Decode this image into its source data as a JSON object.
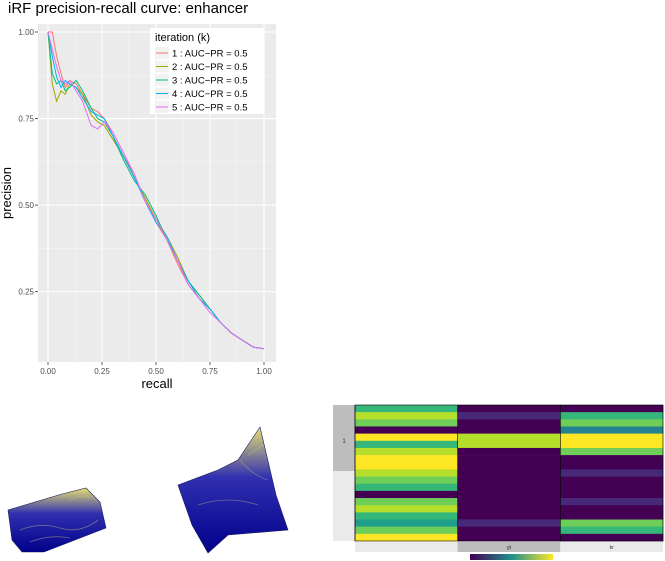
{
  "chart_data": [
    {
      "type": "line",
      "title": "iRF precision-recall curve: enhancer",
      "xlabel": "recall",
      "ylabel": "precision",
      "xlim": [
        0,
        1
      ],
      "ylim": [
        0.07,
        1.0
      ],
      "xticks": [
        "0.00",
        "0.25",
        "0.50",
        "0.75",
        "1.00"
      ],
      "yticks": [
        "0.25",
        "0.50",
        "0.75",
        "1.00"
      ],
      "grid": true,
      "legend": {
        "title": "iteration (k)",
        "position": "top-right"
      },
      "series": [
        {
          "name": "1 : AUC−PR =  0.5",
          "color": "#F8766D",
          "x": [
            0,
            0.02,
            0.04,
            0.06,
            0.08,
            0.1,
            0.13,
            0.16,
            0.2,
            0.23,
            0.26,
            0.3,
            0.35,
            0.4,
            0.45,
            0.5,
            0.55,
            0.6,
            0.65,
            0.7,
            0.75,
            0.8,
            0.85,
            0.9,
            0.95,
            1.0
          ],
          "y": [
            1.0,
            1.0,
            0.93,
            0.88,
            0.84,
            0.86,
            0.85,
            0.82,
            0.78,
            0.77,
            0.75,
            0.71,
            0.65,
            0.58,
            0.52,
            0.45,
            0.4,
            0.33,
            0.27,
            0.23,
            0.2,
            0.16,
            0.13,
            0.11,
            0.09,
            0.085
          ]
        },
        {
          "name": "2 : AUC−PR =  0.5",
          "color": "#A3A500",
          "x": [
            0,
            0.02,
            0.04,
            0.06,
            0.08,
            0.1,
            0.13,
            0.16,
            0.2,
            0.23,
            0.26,
            0.3,
            0.35,
            0.4,
            0.45,
            0.5,
            0.55,
            0.6,
            0.65,
            0.7,
            0.75,
            0.8,
            0.85,
            0.9,
            0.95,
            1.0
          ],
          "y": [
            1.0,
            0.85,
            0.8,
            0.83,
            0.82,
            0.85,
            0.84,
            0.82,
            0.76,
            0.74,
            0.73,
            0.69,
            0.64,
            0.58,
            0.52,
            0.46,
            0.41,
            0.35,
            0.28,
            0.24,
            0.2,
            0.16,
            0.13,
            0.11,
            0.09,
            0.085
          ]
        },
        {
          "name": "3 : AUC−PR =  0.5",
          "color": "#00BF7D",
          "x": [
            0,
            0.02,
            0.04,
            0.06,
            0.08,
            0.1,
            0.13,
            0.16,
            0.2,
            0.23,
            0.26,
            0.3,
            0.35,
            0.4,
            0.45,
            0.5,
            0.55,
            0.6,
            0.65,
            0.7,
            0.75,
            0.8,
            0.85,
            0.9,
            0.95,
            1.0
          ],
          "y": [
            1.0,
            0.88,
            0.85,
            0.86,
            0.83,
            0.84,
            0.86,
            0.83,
            0.78,
            0.75,
            0.74,
            0.7,
            0.63,
            0.57,
            0.53,
            0.47,
            0.4,
            0.34,
            0.28,
            0.24,
            0.2,
            0.16,
            0.13,
            0.11,
            0.09,
            0.085
          ]
        },
        {
          "name": "4 : AUC−PR =  0.5",
          "color": "#00B0F6",
          "x": [
            0,
            0.02,
            0.04,
            0.06,
            0.08,
            0.1,
            0.13,
            0.16,
            0.2,
            0.23,
            0.26,
            0.3,
            0.35,
            0.4,
            0.45,
            0.5,
            0.55,
            0.6,
            0.65,
            0.7,
            0.75,
            0.8,
            0.85,
            0.9,
            0.95,
            1.0
          ],
          "y": [
            1.0,
            0.93,
            0.87,
            0.84,
            0.86,
            0.85,
            0.84,
            0.81,
            0.77,
            0.76,
            0.75,
            0.7,
            0.64,
            0.58,
            0.51,
            0.45,
            0.41,
            0.34,
            0.28,
            0.23,
            0.2,
            0.16,
            0.13,
            0.11,
            0.09,
            0.085
          ]
        },
        {
          "name": "5 : AUC−PR =  0.5",
          "color": "#E76BF3",
          "x": [
            0,
            0.02,
            0.04,
            0.06,
            0.08,
            0.1,
            0.13,
            0.16,
            0.2,
            0.23,
            0.26,
            0.3,
            0.35,
            0.4,
            0.45,
            0.5,
            0.55,
            0.6,
            0.65,
            0.7,
            0.75,
            0.8,
            0.85,
            0.9,
            0.95,
            1.0
          ],
          "y": [
            1.0,
            0.95,
            0.9,
            0.86,
            0.85,
            0.86,
            0.83,
            0.8,
            0.73,
            0.72,
            0.74,
            0.71,
            0.65,
            0.59,
            0.51,
            0.46,
            0.4,
            0.34,
            0.27,
            0.23,
            0.19,
            0.16,
            0.13,
            0.11,
            0.09,
            0.085
          ]
        }
      ]
    },
    {
      "type": "heatmap",
      "row_labels": [
        "1",
        ""
      ],
      "column_labels": [
        "",
        "gt",
        "kr"
      ],
      "colorscale": "viridis",
      "colors": {
        "low": "#440154",
        "mid": "#21908C",
        "high": "#FDE725"
      }
    }
  ],
  "surfaces": [
    {
      "colorscale": [
        "#00008b",
        "#3030b0",
        "#e8e070"
      ]
    },
    {
      "colorscale": [
        "#00008b",
        "#3030b0",
        "#e8e070"
      ]
    }
  ]
}
